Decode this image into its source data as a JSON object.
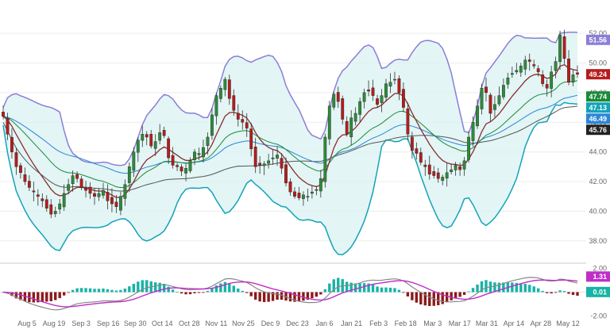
{
  "chart_data": {
    "type": "candlestick",
    "x_labels": [
      "Aug 5",
      "Aug 19",
      "Sep 3",
      "Sep 16",
      "Sep 30",
      "Oct 14",
      "Oct 28",
      "Nov 11",
      "Nov 25",
      "Dec 9",
      "Dec 23",
      "Jan 6",
      "Jan 21",
      "Feb 3",
      "Feb 18",
      "Mar 3",
      "Mar 17",
      "Mar 31",
      "Apr 14",
      "Apr 28",
      "May 12"
    ],
    "price_axis": {
      "ticks": [
        "38.00",
        "40.00",
        "42.00",
        "44.00",
        "46.00",
        "48.00",
        "50.00",
        "52.00"
      ],
      "ylim": [
        36.6,
        53.5
      ]
    },
    "macd_axis": {
      "ticks": [
        "2.00",
        "-2.00"
      ],
      "ylim": [
        -2.1,
        2.3
      ]
    },
    "price_badges": [
      {
        "label": "51.56",
        "value": 51.56,
        "color": "#8a7fd6"
      },
      {
        "label": "49.24",
        "value": 49.24,
        "color": "#b71c1c"
      },
      {
        "label": "47.74",
        "value": 47.74,
        "color": "#1b8a3a"
      },
      {
        "label": "47.13",
        "value": 47.13,
        "color": "#14a3b8"
      },
      {
        "label": "46.49",
        "value": 46.49,
        "color": "#2a86d6"
      },
      {
        "label": "45.76",
        "value": 45.76,
        "color": "#222222"
      }
    ],
    "macd_badges": [
      {
        "label": "1.31",
        "value": 1.31,
        "color": "#c02ec8"
      },
      {
        "label": "0.01",
        "value": 0.01,
        "color": "#16b3a6"
      }
    ],
    "closes": [
      46.4,
      45.2,
      44.0,
      43.0,
      42.6,
      42.0,
      41.6,
      41.3,
      41.0,
      40.7,
      40.2,
      39.8,
      40.0,
      40.5,
      41.2,
      41.8,
      42.4,
      42.2,
      41.6,
      41.4,
      41.2,
      41.0,
      41.2,
      41.4,
      40.7,
      40.5,
      40.3,
      41.0,
      41.8,
      43.0,
      44.0,
      44.8,
      45.2,
      45.0,
      44.4,
      44.7,
      45.3,
      45.1,
      43.6,
      43.1,
      43.0,
      42.7,
      42.9,
      43.4,
      44.0,
      43.9,
      44.3,
      45.0,
      46.5,
      47.8,
      48.3,
      48.9,
      47.6,
      46.8,
      46.2,
      46.0,
      45.6,
      44.2,
      43.0,
      43.1,
      43.2,
      43.4,
      43.6,
      43.8,
      42.9,
      41.9,
      41.3,
      41.0,
      40.9,
      41.1,
      41.0,
      41.3,
      41.4,
      42.2,
      45.0,
      47.1,
      47.9,
      47.4,
      46.2,
      45.2,
      46.3,
      46.6,
      47.4,
      48.0,
      48.1,
      47.8,
      47.2,
      47.8,
      48.6,
      48.7,
      48.9,
      48.0,
      47.0,
      45.2,
      44.1,
      43.9,
      43.3,
      43.0,
      42.5,
      42.4,
      42.2,
      42.3,
      42.6,
      42.8,
      43.1,
      42.8,
      43.4,
      45.0,
      46.0,
      47.1,
      48.3,
      48.0,
      46.6,
      47.2,
      47.8,
      48.5,
      49.0,
      49.3,
      49.5,
      49.8,
      50.2,
      50.1,
      49.8,
      49.4,
      48.6,
      48.3,
      49.4,
      50.1,
      51.9,
      50.3,
      48.7,
      49.2,
      49.24
    ],
    "indicators": [
      "Bollinger Bands",
      "SMA",
      "EMA",
      "MACD"
    ]
  }
}
